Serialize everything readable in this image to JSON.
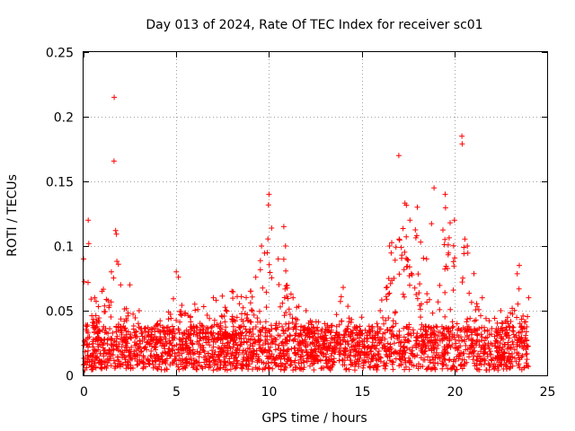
{
  "chart_data": {
    "type": "scatter",
    "title": "Day 013 of 2024, Rate Of TEC Index for receiver sc01",
    "xlabel": "GPS time / hours",
    "ylabel": "ROTI / TECUs",
    "xlim": [
      0,
      25
    ],
    "ylim": [
      0,
      0.25
    ],
    "x_ticks": [
      0,
      5,
      10,
      15,
      20,
      25
    ],
    "x_tick_labels": [
      "0",
      "5",
      "10",
      "15",
      "20",
      "25"
    ],
    "y_ticks": [
      0,
      0.05,
      0.1,
      0.15,
      0.2,
      0.25
    ],
    "y_tick_labels": [
      "0",
      "0.05",
      "0.1",
      "0.15",
      "0.2",
      "0.25"
    ],
    "grid": true,
    "marker": "+",
    "color": "#ff0000",
    "series": [
      {
        "name": "ROTI sc01",
        "x_range": [
          0,
          24
        ],
        "base_level": 0.015,
        "envelope": [
          {
            "x": 0.0,
            "y": 0.09
          },
          {
            "x": 0.25,
            "y": 0.12
          },
          {
            "x": 0.6,
            "y": 0.06
          },
          {
            "x": 1.0,
            "y": 0.065
          },
          {
            "x": 1.5,
            "y": 0.08
          },
          {
            "x": 1.65,
            "y": 0.215
          },
          {
            "x": 2.0,
            "y": 0.07
          },
          {
            "x": 2.5,
            "y": 0.07
          },
          {
            "x": 3.0,
            "y": 0.05
          },
          {
            "x": 4.0,
            "y": 0.04
          },
          {
            "x": 5.0,
            "y": 0.08
          },
          {
            "x": 6.0,
            "y": 0.055
          },
          {
            "x": 7.0,
            "y": 0.06
          },
          {
            "x": 8.0,
            "y": 0.065
          },
          {
            "x": 9.0,
            "y": 0.065
          },
          {
            "x": 9.6,
            "y": 0.1
          },
          {
            "x": 10.0,
            "y": 0.14
          },
          {
            "x": 10.5,
            "y": 0.09
          },
          {
            "x": 10.8,
            "y": 0.115
          },
          {
            "x": 11.3,
            "y": 0.06
          },
          {
            "x": 12.0,
            "y": 0.05
          },
          {
            "x": 13.0,
            "y": 0.04
          },
          {
            "x": 14.0,
            "y": 0.068
          },
          {
            "x": 15.0,
            "y": 0.045
          },
          {
            "x": 16.0,
            "y": 0.05
          },
          {
            "x": 16.5,
            "y": 0.1
          },
          {
            "x": 17.0,
            "y": 0.17
          },
          {
            "x": 17.6,
            "y": 0.12
          },
          {
            "x": 18.0,
            "y": 0.13
          },
          {
            "x": 18.5,
            "y": 0.09
          },
          {
            "x": 18.9,
            "y": 0.145
          },
          {
            "x": 19.5,
            "y": 0.14
          },
          {
            "x": 20.0,
            "y": 0.12
          },
          {
            "x": 20.4,
            "y": 0.185
          },
          {
            "x": 20.7,
            "y": 0.1
          },
          {
            "x": 21.5,
            "y": 0.06
          },
          {
            "x": 22.5,
            "y": 0.05
          },
          {
            "x": 23.5,
            "y": 0.085
          },
          {
            "x": 24.0,
            "y": 0.06
          }
        ]
      }
    ]
  }
}
